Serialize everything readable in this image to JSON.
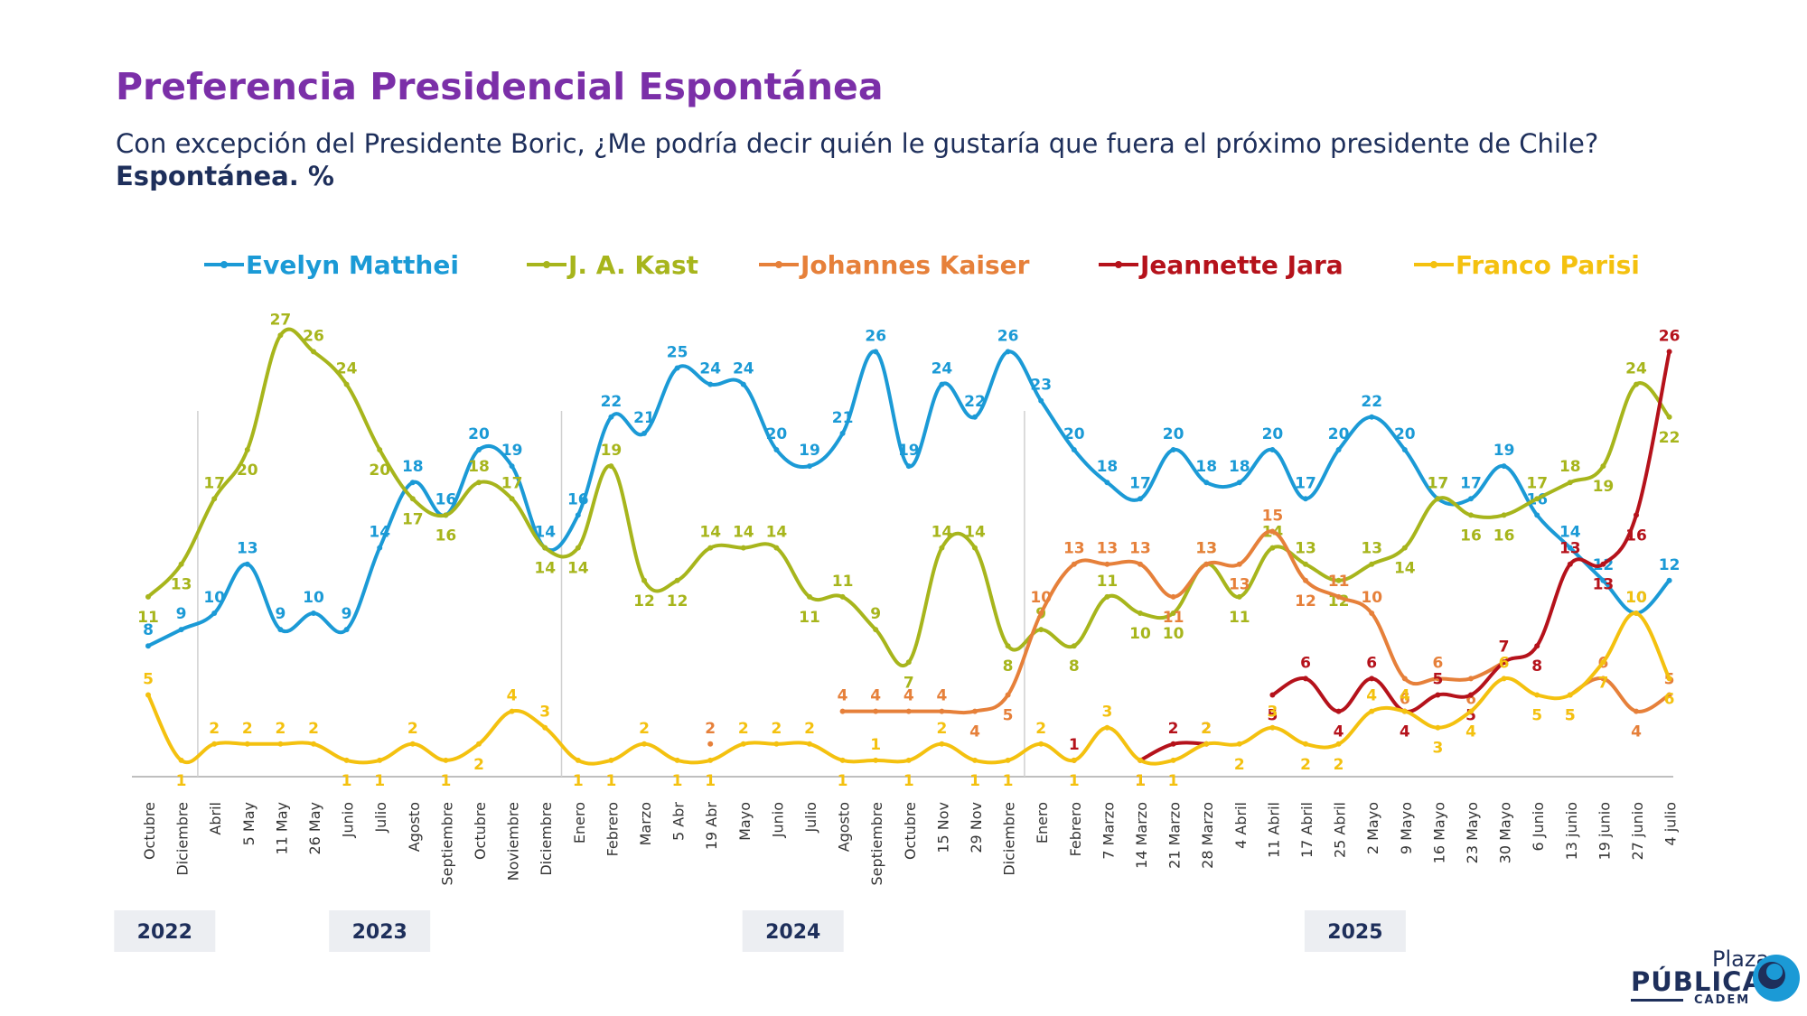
{
  "title": "Preferencia Presidencial Espontánea",
  "subtitle": "Con excepción del Presidente Boric, ¿Me podría decir quién le gustaría que fuera el próximo presidente de Chile?",
  "unit_label": "Espontánea. %",
  "logo": {
    "line1": "Plaza",
    "line2": "PÚBLICA",
    "line3": "CADEM"
  },
  "chart_data": {
    "type": "line",
    "title": "Preferencia Presidencial Espontánea",
    "ylim": [
      0,
      30
    ],
    "grid": false,
    "legend_position": "top",
    "categories": [
      "Octubre",
      "Diciembre",
      "Abril",
      "5 May",
      "11 May",
      "26 May",
      "Junio",
      "Julio",
      "Agosto",
      "Septiembre",
      "Octubre",
      "Noviembre",
      "Diciembre",
      "Enero",
      "Febrero",
      "Marzo",
      "5 Abr",
      "19 Abr",
      "Mayo",
      "Junio",
      "Julio",
      "Agosto",
      "Septiembre",
      "Octubre",
      "15 Nov",
      "29 Nov",
      "Diciembre",
      "Enero",
      "Febrero",
      "7 Marzo",
      "14 Marzo",
      "21 Marzo",
      "28 Marzo",
      "4 Abril",
      "11 Abril",
      "17 Abril",
      "25 Abril",
      "2 Mayo",
      "9 Mayo",
      "16 Mayo",
      "23 Mayo",
      "30 Mayo",
      "6 Junio",
      "13 junio",
      "19 junio",
      "27 junio",
      "4 julio"
    ],
    "years": [
      {
        "label": "2022",
        "start": 0,
        "end": 1
      },
      {
        "label": "2023",
        "start": 2,
        "end": 12
      },
      {
        "label": "2024",
        "start": 13,
        "end": 26
      },
      {
        "label": "2025",
        "start": 27,
        "end": 46
      }
    ],
    "series": [
      {
        "name": "Evelyn Matthei",
        "color": "#1b9ad6",
        "label_position": "above",
        "values": [
          8,
          9,
          10,
          13,
          9,
          10,
          9,
          14,
          18,
          16,
          20,
          19,
          14,
          16,
          22,
          21,
          25,
          24,
          24,
          20,
          19,
          21,
          26,
          19,
          24,
          22,
          26,
          23,
          20,
          18,
          17,
          20,
          18,
          18,
          20,
          17,
          20,
          22,
          20,
          17,
          17,
          19,
          16,
          14,
          12,
          10,
          12
        ]
      },
      {
        "name": "J. A. Kast",
        "color": "#a7b51c",
        "label_position": "mixed",
        "values": [
          11,
          13,
          17,
          20,
          27,
          26,
          24,
          20,
          17,
          16,
          18,
          17,
          14,
          14,
          19,
          12,
          12,
          14,
          14,
          14,
          11,
          11,
          9,
          7,
          14,
          14,
          8,
          9,
          8,
          11,
          10,
          10,
          13,
          11,
          14,
          13,
          12,
          13,
          14,
          17,
          16,
          16,
          17,
          18,
          19,
          24,
          22
        ]
      },
      {
        "name": "Johannes Kaiser",
        "color": "#e6803a",
        "label_position": "mixed",
        "values": [
          null,
          null,
          null,
          null,
          null,
          null,
          null,
          null,
          null,
          null,
          null,
          null,
          null,
          null,
          null,
          null,
          null,
          2,
          null,
          null,
          null,
          4,
          4,
          4,
          4,
          4,
          5,
          10,
          13,
          13,
          13,
          11,
          13,
          13,
          15,
          12,
          11,
          10,
          6,
          6,
          6,
          7,
          null,
          5,
          6,
          4,
          5
        ]
      },
      {
        "name": "Jeannette Jara",
        "color": "#b5121b",
        "label_position": "mixed",
        "values": [
          null,
          null,
          null,
          null,
          null,
          null,
          null,
          null,
          null,
          null,
          null,
          null,
          null,
          null,
          null,
          null,
          null,
          null,
          null,
          null,
          null,
          null,
          null,
          null,
          null,
          null,
          null,
          null,
          1,
          null,
          1,
          2,
          2,
          null,
          5,
          6,
          4,
          6,
          4,
          5,
          5,
          7,
          8,
          13,
          13,
          16,
          26
        ]
      },
      {
        "name": "Franco Parisi",
        "color": "#f4c10f",
        "label_position": "mixed",
        "values": [
          5,
          1,
          2,
          2,
          2,
          2,
          1,
          1,
          2,
          1,
          2,
          4,
          3,
          1,
          1,
          2,
          1,
          1,
          2,
          2,
          2,
          1,
          1,
          1,
          2,
          1,
          1,
          2,
          1,
          3,
          1,
          1,
          2,
          2,
          3,
          2,
          2,
          4,
          4,
          3,
          4,
          6,
          5,
          5,
          7,
          10,
          6
        ]
      }
    ]
  }
}
